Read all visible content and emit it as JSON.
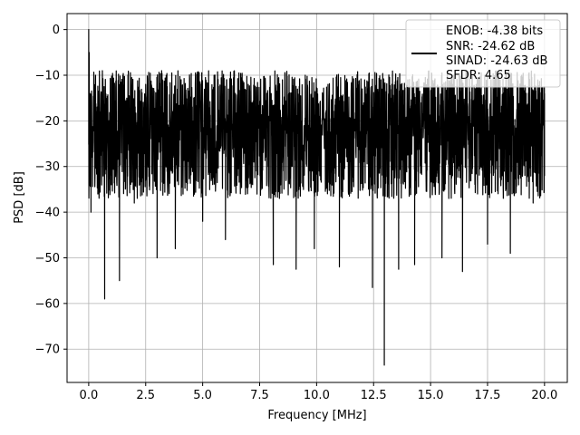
{
  "chart_data": {
    "type": "line",
    "title": "",
    "xlabel": "Frequency [MHz]",
    "ylabel": "PSD [dB]",
    "xlim": [
      -0.95,
      21.0
    ],
    "ylim": [
      -77.3,
      3.5
    ],
    "xticks": [
      0.0,
      2.5,
      5.0,
      7.5,
      10.0,
      12.5,
      15.0,
      17.5,
      20.0
    ],
    "xtick_labels": [
      "0.0",
      "2.5",
      "5.0",
      "7.5",
      "10.0",
      "12.5",
      "15.0",
      "17.5",
      "20.0"
    ],
    "yticks": [
      0,
      -10,
      -20,
      -30,
      -40,
      -50,
      -60,
      -70
    ],
    "ytick_labels": [
      "0",
      "−10",
      "−20",
      "−30",
      "−40",
      "−50",
      "−60",
      "−70"
    ],
    "grid": true,
    "legend_position": "top-right",
    "line_color": "#000000",
    "series": [
      {
        "name": "ENOB: -4.38 bits\nSNR: -24.62 dB\nSINAD: -24.63 dB\nSFDR: 4.65",
        "name_lines": [
          "ENOB: -4.38 bits",
          "SNR: -24.62 dB",
          "SINAD: -24.63 dB",
          "SFDR: 4.65"
        ],
        "x": [
          0.0,
          0.02,
          0.05,
          0.1,
          0.2,
          0.3,
          0.4,
          0.5,
          0.6,
          0.7,
          1.0,
          1.35,
          1.5,
          2.0,
          2.5,
          3.0,
          3.2,
          3.8,
          4.5,
          5.0,
          5.5,
          6.0,
          7.0,
          8.1,
          8.5,
          9.1,
          9.5,
          9.9,
          10.5,
          11.0,
          12.0,
          12.45,
          12.97,
          13.3,
          13.6,
          14.0,
          14.3,
          14.9,
          15.5,
          16.0,
          16.4,
          17.0,
          17.5,
          18.0,
          18.5,
          19.0,
          19.5,
          20.0
        ],
        "values": [
          0.0,
          -5.0,
          -14.0,
          -40.0,
          -21.0,
          -10.0,
          -36.0,
          -18.0,
          -9.0,
          -59.0,
          -11.0,
          -55.0,
          -10.0,
          -38.0,
          -12.0,
          -50.0,
          -9.0,
          -48.0,
          -11.0,
          -42.0,
          -10.0,
          -46.0,
          -12.0,
          -51.5,
          -11.0,
          -52.5,
          -10.0,
          -48.0,
          -12.0,
          -52.0,
          -13.0,
          -56.5,
          -73.5,
          -12.0,
          -52.5,
          -11.0,
          -51.5,
          -13.0,
          -50.0,
          -10.0,
          -53.0,
          -12.0,
          -47.0,
          -11.0,
          -49.0,
          -10.0,
          -38.0,
          -14.0
        ]
      }
    ]
  }
}
